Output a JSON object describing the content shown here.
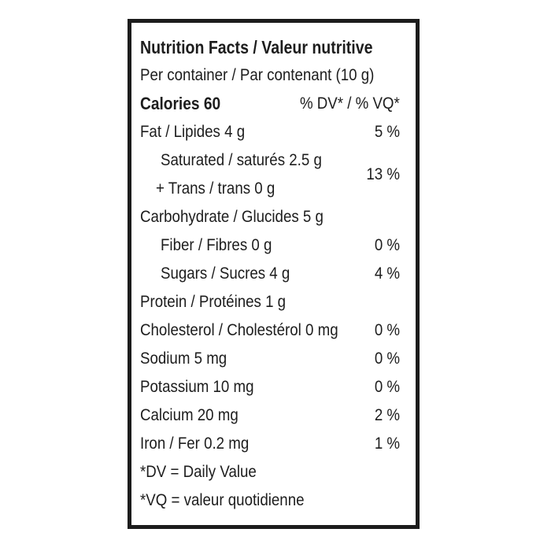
{
  "label": {
    "title": "Nutrition Facts / Valeur nutritive",
    "serving": "Per container / Par contenant (10 g)",
    "calories_row": {
      "left": "Calories 60",
      "right": "% DV* / % VQ*"
    },
    "nutrients": {
      "fat": {
        "name": "Fat / Lipides 4 g",
        "dv": "5 %"
      },
      "saturated_trans": {
        "line1": "Saturated / saturés 2.5 g",
        "line2": "+ Trans / trans 0 g",
        "dv": "13 %"
      },
      "carbohydrate": {
        "name": "Carbohydrate / Glucides 5 g",
        "dv": ""
      },
      "fiber": {
        "name": "Fiber / Fibres 0 g",
        "dv": "0 %"
      },
      "sugars": {
        "name": "Sugars / Sucres 4 g",
        "dv": "4 %"
      },
      "protein": {
        "name": "Protein / Protéines 1 g",
        "dv": ""
      },
      "cholesterol": {
        "name": "Cholesterol / Cholestérol 0 mg",
        "dv": "0 %"
      },
      "sodium": {
        "name": "Sodium 5 mg",
        "dv": "0 %"
      },
      "potassium": {
        "name": "Potassium 10 mg",
        "dv": "0 %"
      },
      "calcium": {
        "name": "Calcium 20 mg",
        "dv": "2 %"
      },
      "iron": {
        "name": "Iron / Fer 0.2 mg",
        "dv": "1 %"
      }
    },
    "footnotes": {
      "dv": "*DV = Daily Value",
      "vq": "*VQ = valeur quotidienne"
    }
  },
  "colors": {
    "border": "#1c1c1c",
    "text": "#1d1d1d",
    "background": "#ffffff"
  }
}
